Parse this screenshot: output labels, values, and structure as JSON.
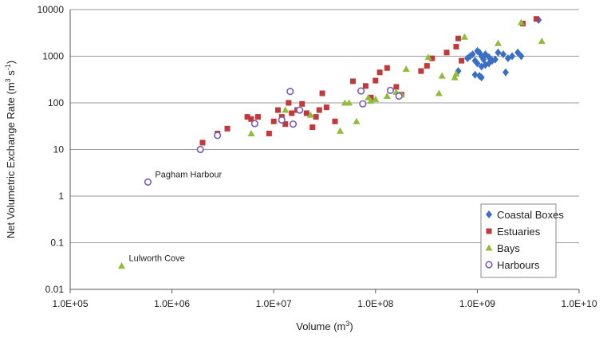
{
  "chart_data": {
    "type": "scatter",
    "x_scale": "log",
    "y_scale": "log",
    "xlim": [
      100000,
      10000000000
    ],
    "ylim": [
      0.01,
      10000
    ],
    "x_tick_values": [
      100000,
      1000000,
      10000000,
      100000000,
      1000000000,
      10000000000
    ],
    "x_tick_labels": [
      "1.0E+05",
      "1.0E+06",
      "1.0E+07",
      "1.0E+08",
      "1.0E+09",
      "1.0E+10"
    ],
    "y_tick_values": [
      0.01,
      0.1,
      1,
      10,
      100,
      1000,
      10000
    ],
    "y_tick_labels": [
      "0.01",
      "0.1",
      "1",
      "10",
      "100",
      "1000",
      "10000"
    ],
    "xlabel_main": "Volume (m",
    "xlabel_sup": "3",
    "xlabel_end": ")",
    "ylabel_main": "Net Volumetric Exchange Rate (m",
    "ylabel_sup": "3",
    "ylabel_mid": " s",
    "ylabel_sup2": "-1",
    "ylabel_end": ")",
    "grid": "horizontal",
    "legend_position": "bottom-right",
    "series": [
      {
        "name": "Coastal Boxes",
        "marker": "diamond",
        "color": "#3a6fc4",
        "points": [
          [
            4000000000,
            6000
          ],
          [
            800000000,
            900
          ],
          [
            850000000,
            1000
          ],
          [
            900000000,
            1100
          ],
          [
            950000000,
            800
          ],
          [
            1000000000,
            1300
          ],
          [
            1050000000,
            1200
          ],
          [
            1100000000,
            1000
          ],
          [
            1150000000,
            850
          ],
          [
            1200000000,
            1100
          ],
          [
            1300000000,
            950
          ],
          [
            1400000000,
            800
          ],
          [
            1000000000,
            700
          ],
          [
            1100000000,
            600
          ],
          [
            1200000000,
            650
          ],
          [
            1300000000,
            700
          ],
          [
            950000000,
            400
          ],
          [
            1050000000,
            380
          ],
          [
            1100000000,
            350
          ],
          [
            650000000,
            480
          ],
          [
            1600000000,
            1200
          ],
          [
            1800000000,
            1100
          ],
          [
            2000000000,
            900
          ],
          [
            2200000000,
            1000
          ],
          [
            2500000000,
            1200
          ],
          [
            2700000000,
            1000
          ],
          [
            1900000000,
            450
          ],
          [
            1500000000,
            850
          ]
        ]
      },
      {
        "name": "Estuaries",
        "marker": "square",
        "color": "#c0393b",
        "points": [
          [
            2000000,
            14
          ],
          [
            2800000,
            22
          ],
          [
            3500000,
            28
          ],
          [
            5500000,
            50
          ],
          [
            6000000,
            45
          ],
          [
            7000000,
            50
          ],
          [
            9000000,
            22
          ],
          [
            10000000,
            40
          ],
          [
            11000000,
            70
          ],
          [
            12000000,
            50
          ],
          [
            13000000,
            35
          ],
          [
            14000000,
            100
          ],
          [
            15000000,
            60
          ],
          [
            17000000,
            70
          ],
          [
            19000000,
            95
          ],
          [
            21000000,
            60
          ],
          [
            24000000,
            30
          ],
          [
            26000000,
            50
          ],
          [
            28000000,
            70
          ],
          [
            30000000,
            160
          ],
          [
            33000000,
            80
          ],
          [
            40000000,
            40
          ],
          [
            60000000,
            290
          ],
          [
            80000000,
            230
          ],
          [
            90000000,
            130
          ],
          [
            100000000,
            300
          ],
          [
            110000000,
            450
          ],
          [
            130000000,
            560
          ],
          [
            160000000,
            220
          ],
          [
            180000000,
            150
          ],
          [
            280000000,
            480
          ],
          [
            320000000,
            620
          ],
          [
            360000000,
            900
          ],
          [
            500000000,
            1200
          ],
          [
            620000000,
            1600
          ],
          [
            650000000,
            2400
          ],
          [
            700000000,
            800
          ],
          [
            2800000000,
            5000
          ],
          [
            3800000000,
            6300
          ]
        ]
      },
      {
        "name": "Bays",
        "marker": "triangle",
        "color": "#8fbc3a",
        "points": [
          [
            320000,
            0.032
          ],
          [
            6000000,
            22
          ],
          [
            13000000,
            70
          ],
          [
            23000000,
            55
          ],
          [
            45000000,
            25
          ],
          [
            50000000,
            100
          ],
          [
            55000000,
            100
          ],
          [
            65000000,
            40
          ],
          [
            85000000,
            130
          ],
          [
            90000000,
            110
          ],
          [
            100000000,
            120
          ],
          [
            130000000,
            140
          ],
          [
            160000000,
            170
          ],
          [
            180000000,
            150
          ],
          [
            200000000,
            530
          ],
          [
            330000000,
            950
          ],
          [
            420000000,
            160
          ],
          [
            450000000,
            380
          ],
          [
            600000000,
            350
          ],
          [
            620000000,
            420
          ],
          [
            750000000,
            2600
          ],
          [
            1600000000,
            1900
          ],
          [
            2700000000,
            5300
          ],
          [
            4300000000,
            2100
          ]
        ]
      },
      {
        "name": "Harbours",
        "marker": "circle",
        "color": "#7b5bb5",
        "points": [
          [
            580000,
            2
          ],
          [
            1900000,
            10
          ],
          [
            2800000,
            20
          ],
          [
            6500000,
            36
          ],
          [
            12000000,
            43
          ],
          [
            14500000,
            175
          ],
          [
            15500000,
            35
          ],
          [
            18000000,
            70
          ],
          [
            72000000,
            180
          ],
          [
            75000000,
            95
          ],
          [
            140000000,
            185
          ],
          [
            170000000,
            140
          ]
        ]
      }
    ],
    "annotations": [
      {
        "text": "Pagham Harbour",
        "x": 580000,
        "y": 2
      },
      {
        "text": "Lulworth Cove",
        "x": 320000,
        "y": 0.032
      }
    ]
  }
}
